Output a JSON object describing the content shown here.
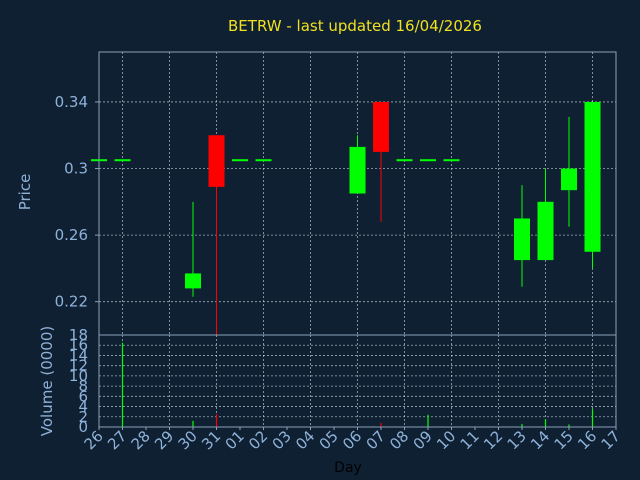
{
  "title": "BETRW - last updated 16/04/2026",
  "colors": {
    "background": "#0f2033",
    "frame": "#8aa0b8",
    "grid": "#d0d8e0",
    "label": "#8fb2d8",
    "title": "#f0e020",
    "up": "#00ff00",
    "down": "#ff0000"
  },
  "chart_data": {
    "type": "candlestick",
    "xlabel": "Day",
    "x_ticks": [
      "26",
      "27",
      "28",
      "29",
      "30",
      "31",
      "01",
      "02",
      "03",
      "04",
      "05",
      "06",
      "07",
      "08",
      "09",
      "10",
      "11",
      "12",
      "13",
      "14",
      "15",
      "16",
      "17"
    ],
    "price": {
      "ylabel": "Price",
      "ylim": [
        0.2,
        0.37
      ],
      "y_ticks": [
        "0.22",
        "0.26",
        "0.3",
        "0.34"
      ],
      "y_tick_values": [
        0.22,
        0.26,
        0.3,
        0.34
      ],
      "candles": [
        {
          "day": "26",
          "open": 0.305,
          "close": 0.305,
          "high": 0.305,
          "low": 0.305
        },
        {
          "day": "27",
          "open": 0.305,
          "close": 0.305,
          "high": 0.305,
          "low": 0.305
        },
        {
          "day": "30",
          "open": 0.228,
          "close": 0.237,
          "high": 0.28,
          "low": 0.223
        },
        {
          "day": "31",
          "open": 0.32,
          "close": 0.289,
          "high": 0.32,
          "low": 0.2
        },
        {
          "day": "01",
          "open": 0.305,
          "close": 0.305,
          "high": 0.305,
          "low": 0.305
        },
        {
          "day": "02",
          "open": 0.305,
          "close": 0.305,
          "high": 0.305,
          "low": 0.305
        },
        {
          "day": "06",
          "open": 0.285,
          "close": 0.313,
          "high": 0.32,
          "low": 0.285
        },
        {
          "day": "07",
          "open": 0.34,
          "close": 0.31,
          "high": 0.34,
          "low": 0.268
        },
        {
          "day": "08",
          "open": 0.305,
          "close": 0.305,
          "high": 0.305,
          "low": 0.305
        },
        {
          "day": "09",
          "open": 0.305,
          "close": 0.305,
          "high": 0.305,
          "low": 0.305
        },
        {
          "day": "10",
          "open": 0.305,
          "close": 0.305,
          "high": 0.305,
          "low": 0.305
        },
        {
          "day": "13",
          "open": 0.245,
          "close": 0.27,
          "high": 0.29,
          "low": 0.229
        },
        {
          "day": "14",
          "open": 0.245,
          "close": 0.28,
          "high": 0.3,
          "low": 0.245
        },
        {
          "day": "15",
          "open": 0.287,
          "close": 0.3,
          "high": 0.331,
          "low": 0.265
        },
        {
          "day": "16",
          "open": 0.25,
          "close": 0.34,
          "high": 0.34,
          "low": 0.24
        }
      ]
    },
    "volume": {
      "ylabel": "Volume (0000)",
      "ylim": [
        0,
        18
      ],
      "y_ticks": [
        "0",
        "2",
        "4",
        "6",
        "8",
        "10",
        "12",
        "14",
        "16",
        "18"
      ],
      "bars": [
        {
          "day": "27",
          "value": 16.5,
          "direction": "up"
        },
        {
          "day": "30",
          "value": 1.2,
          "direction": "up"
        },
        {
          "day": "31",
          "value": 2.5,
          "direction": "down"
        },
        {
          "day": "07",
          "value": 0.8,
          "direction": "down"
        },
        {
          "day": "09",
          "value": 2.4,
          "direction": "up"
        },
        {
          "day": "13",
          "value": 0.6,
          "direction": "up"
        },
        {
          "day": "14",
          "value": 1.5,
          "direction": "up"
        },
        {
          "day": "15",
          "value": 0.5,
          "direction": "up"
        },
        {
          "day": "16",
          "value": 3.5,
          "direction": "up"
        }
      ]
    }
  }
}
